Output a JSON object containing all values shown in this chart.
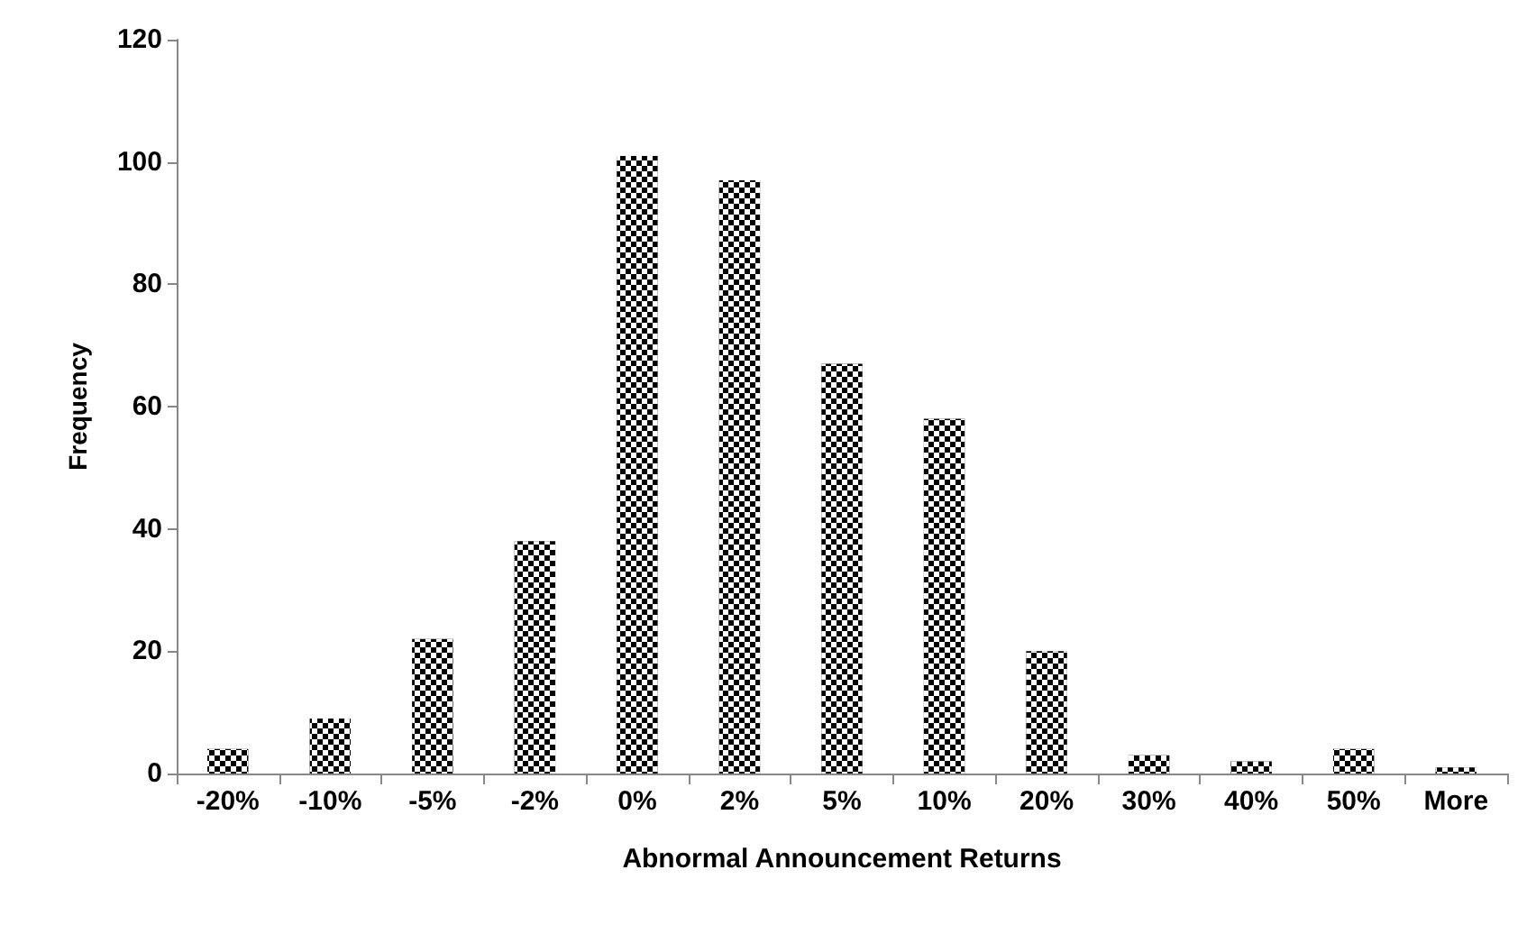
{
  "chart_data": {
    "type": "bar",
    "xlabel": "Abnormal Announcement Returns",
    "ylabel": "Frequency",
    "categories": [
      "-20%",
      "-10%",
      "-5%",
      "-2%",
      "0%",
      "2%",
      "5%",
      "10%",
      "20%",
      "30%",
      "40%",
      "50%",
      "More"
    ],
    "values": [
      4,
      9,
      22,
      38,
      101,
      97,
      67,
      58,
      20,
      3,
      2,
      4,
      1
    ],
    "color": "#000000",
    "ylim": [
      0,
      120
    ],
    "yticks": [
      0,
      20,
      40,
      60,
      80,
      100,
      120
    ],
    "grid": false
  }
}
